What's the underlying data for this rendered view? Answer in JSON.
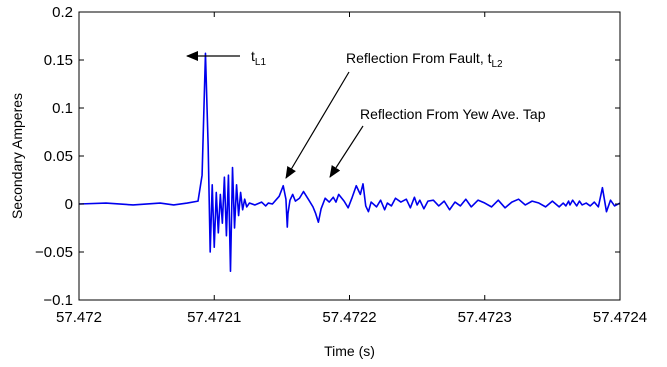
{
  "chart_data": {
    "type": "line",
    "xlabel": "Time (s)",
    "ylabel": "Secondary Amperes",
    "xlim": [
      57.472,
      57.4724
    ],
    "ylim": [
      -0.1,
      0.2
    ],
    "x_ticks": [
      57.472,
      57.4721,
      57.4722,
      57.4723,
      57.4724
    ],
    "x_tick_labels": [
      "57.472",
      "57.4721",
      "57.4722",
      "57.4723",
      "57.4724"
    ],
    "y_ticks": [
      -0.1,
      -0.05,
      0,
      0.05,
      0.1,
      0.15,
      0.2
    ],
    "y_tick_labels": [
      "−0.1",
      "−0.05",
      "0",
      "0.05",
      "0.1",
      "0.15",
      "0.2"
    ],
    "grid": false,
    "line_color": "#0000ee",
    "series": [
      {
        "x": [
          57.472,
          57.47202,
          57.47204,
          57.47206,
          57.47207,
          57.47208,
          57.472088,
          57.472091,
          57.4720935,
          57.4720955,
          57.472097,
          57.4720985,
          57.4721,
          57.4721015,
          57.472103,
          57.4721045,
          57.472106,
          57.4721075,
          57.472109,
          57.4721105,
          57.472112,
          57.4721135,
          57.472115,
          57.4721165,
          57.472118,
          57.4721195,
          57.472121,
          57.4721225,
          57.472124,
          57.472126,
          57.47213,
          57.472135,
          57.472138,
          57.47214,
          57.472143,
          57.472148,
          57.472151,
          57.472153,
          57.472154,
          57.4721545,
          57.472156,
          57.472158,
          57.47216,
          57.472163,
          57.472166,
          57.47217,
          57.472173,
          57.472175,
          57.472177,
          57.472179,
          57.472182,
          57.472185,
          57.472188,
          57.47219,
          57.472192,
          57.472196,
          57.472199,
          57.472202,
          57.472205,
          57.472208,
          57.47221,
          57.472212,
          57.472214,
          57.472216,
          57.47222,
          57.472223,
          57.472226,
          57.472228,
          57.472231,
          57.472234,
          57.472238,
          57.472242,
          57.472245,
          57.472248,
          57.47225,
          57.472252,
          57.472255,
          57.472258,
          57.472262,
          57.472266,
          57.47227,
          57.472274,
          57.472278,
          57.472282,
          57.472286,
          57.47229,
          57.472295,
          57.4723,
          57.472305,
          57.47231,
          57.472315,
          57.47232,
          57.472325,
          57.47233,
          57.472335,
          57.47234,
          57.472345,
          57.47235,
          57.472355,
          57.472358,
          57.47236,
          57.472362,
          57.472363,
          57.472365,
          57.472368,
          57.47237,
          57.472372,
          57.472375,
          57.472378,
          57.472381,
          57.472384,
          57.472387,
          57.47239,
          57.472393,
          57.472396,
          57.4724
        ],
        "y": [
          0,
          0.001,
          -0.001,
          0.001,
          -0.001,
          0.001,
          0.003,
          0.03,
          0.157,
          0.06,
          -0.05,
          0.02,
          -0.045,
          0.012,
          -0.03,
          0.01,
          -0.02,
          0.028,
          -0.033,
          0.03,
          -0.07,
          0.038,
          -0.025,
          0.02,
          -0.012,
          0.012,
          -0.006,
          0.005,
          -0.003,
          0.001,
          -0.001,
          0.002,
          -0.002,
          0.001,
          0,
          0.008,
          0.019,
          0.005,
          -0.024,
          -0.01,
          0.004,
          0.01,
          0.003,
          0.006,
          0.013,
          0.004,
          -0.003,
          -0.01,
          -0.019,
          -0.005,
          0.006,
          0.002,
          0.007,
          0.002,
          0.01,
          0.003,
          -0.004,
          0.007,
          0.019,
          0.01,
          0.021,
          -0.002,
          -0.008,
          0.002,
          -0.003,
          0.004,
          -0.006,
          0.001,
          -0.002,
          0.006,
          0.002,
          0.005,
          -0.004,
          0.007,
          -0.001,
          0.004,
          -0.005,
          0.003,
          0.004,
          -0.002,
          0.003,
          -0.006,
          0.002,
          -0.002,
          0.005,
          -0.003,
          0.004,
          0.001,
          -0.003,
          0.004,
          -0.004,
          0.002,
          0.005,
          -0.001,
          0.003,
          0.001,
          -0.003,
          0.003,
          -0.003,
          0.001,
          -0.002,
          0.003,
          -0.001,
          0.004,
          -0.002,
          0.003,
          -0.001,
          0.001,
          -0.002,
          0.002,
          -0.003,
          0.017,
          -0.008,
          0.004,
          -0.002,
          0.001
        ]
      }
    ],
    "annotations": [
      {
        "text": "t",
        "subscript": "L1"
      },
      {
        "text": "Reflection From Fault, t",
        "subscript": "L2"
      },
      {
        "text": "Reflection From Yew Ave. Tap",
        "subscript": ""
      }
    ]
  }
}
